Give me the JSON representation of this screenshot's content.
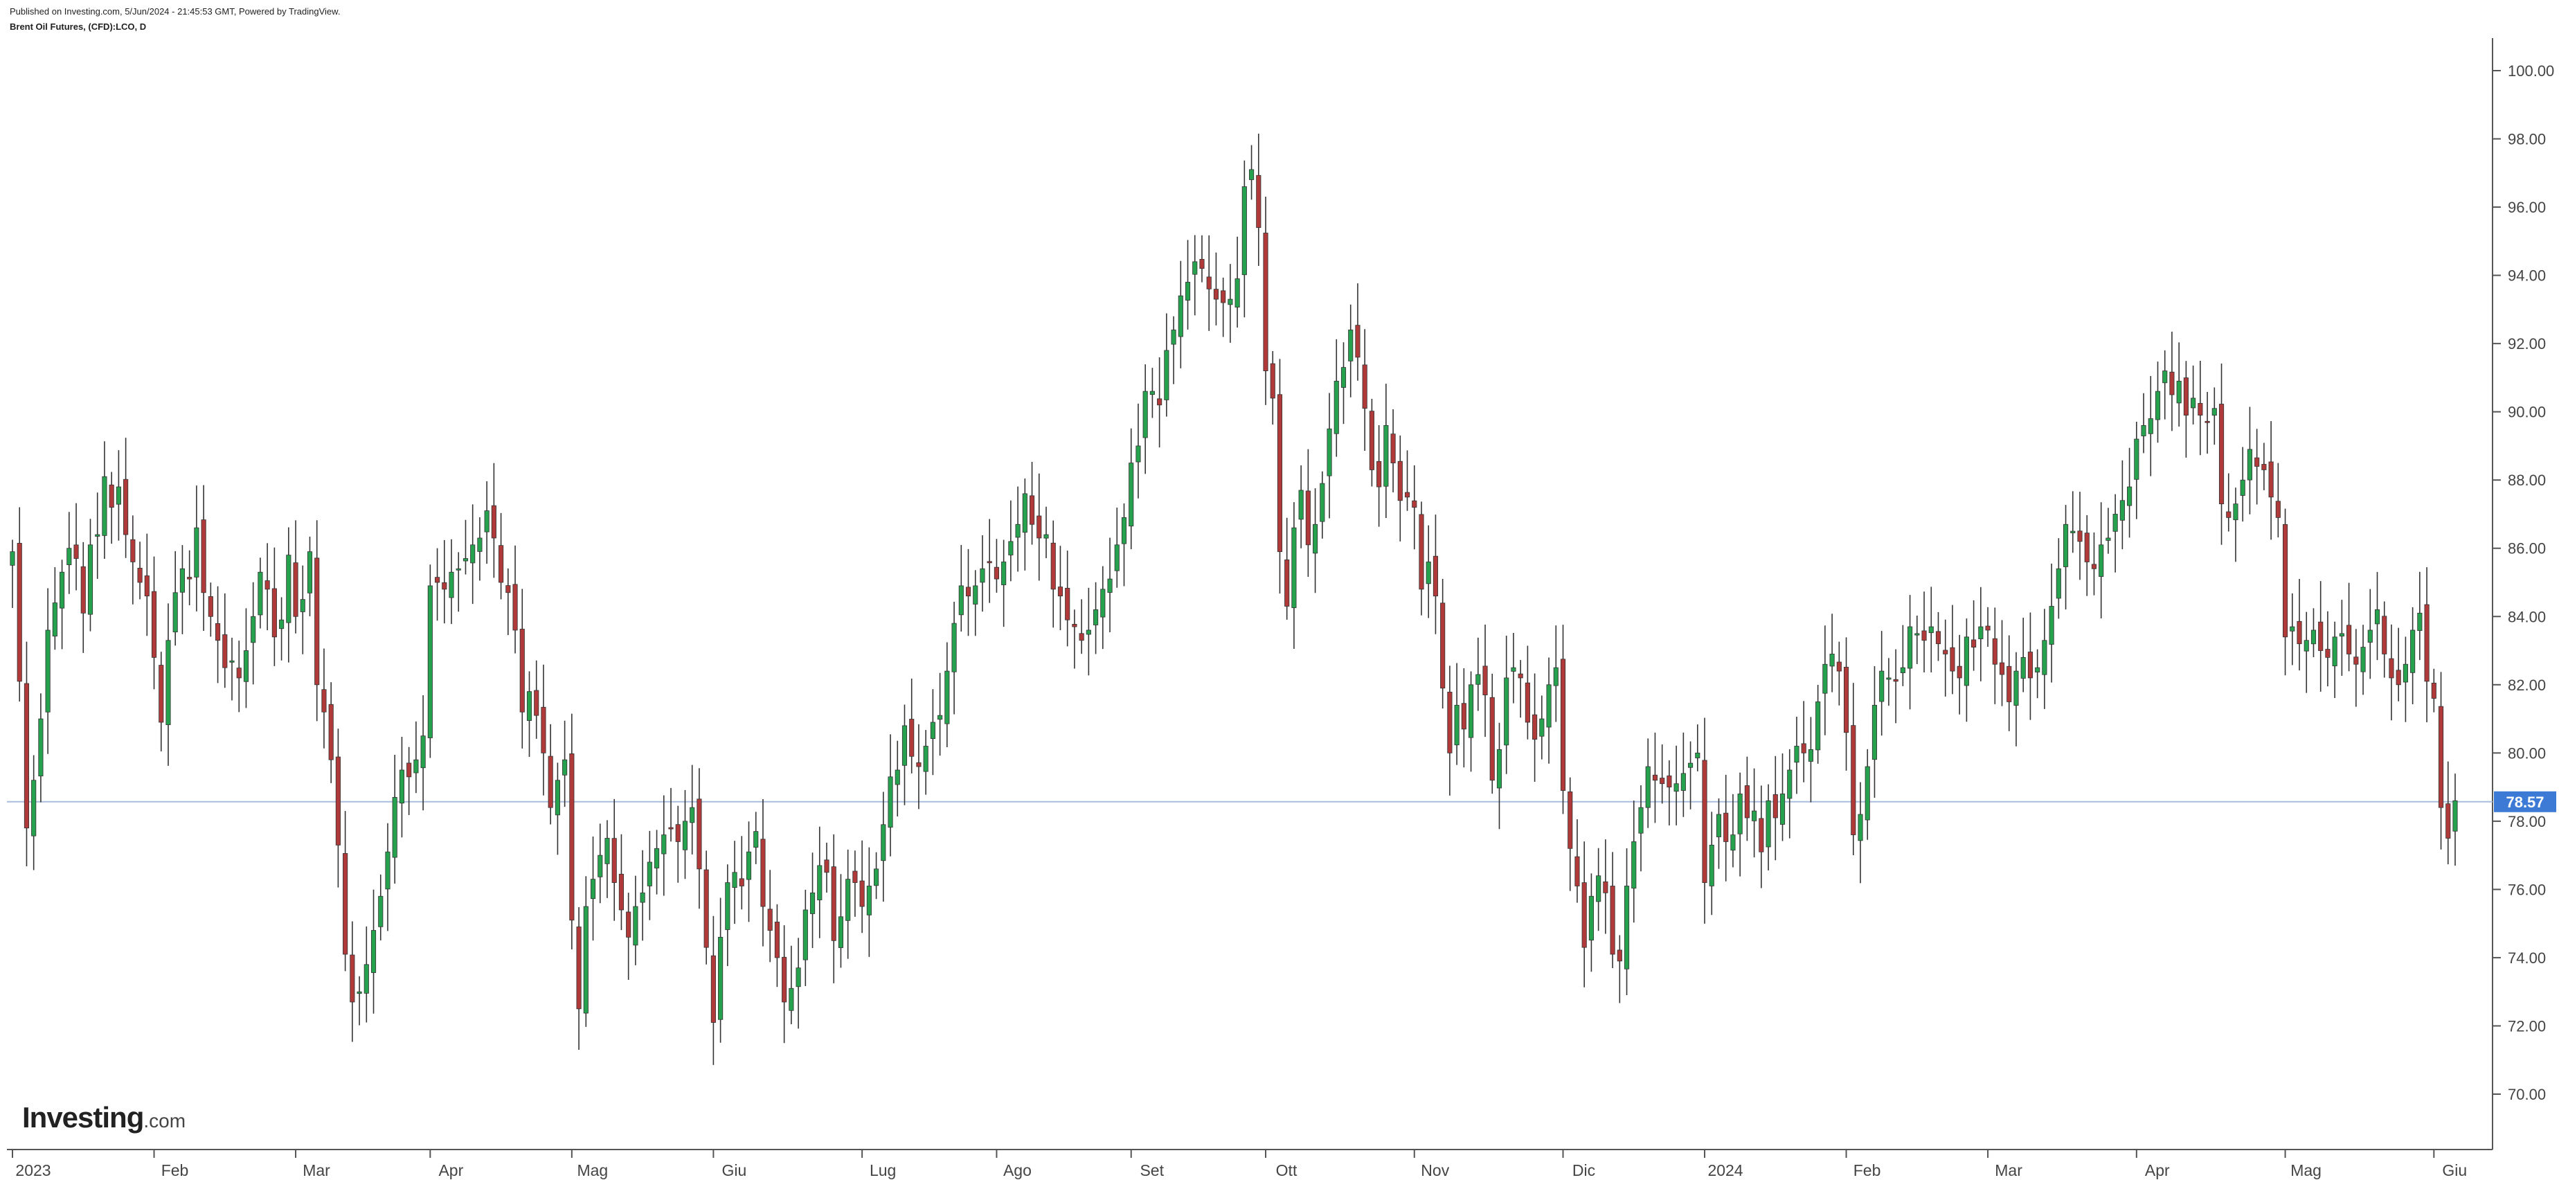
{
  "header": {
    "published": "Published on Investing.com, 5/Jun/2024 - 21:45:53 GMT, Powered by TradingView.",
    "title": "Brent Oil Futures, (CFD):LCO, D"
  },
  "logo": {
    "brand": "Investing",
    "tld": ".com"
  },
  "colors": {
    "up": "#26a24f",
    "down": "#b03a3a",
    "wick": "#333333",
    "price_line": "#a9bedc",
    "price_tag": "#3d7ad6",
    "axis": "#555555"
  },
  "chart_data": {
    "type": "candlestick",
    "title": "Brent Oil Futures, (CFD):LCO, D",
    "xlabel": "",
    "ylabel": "",
    "ylim": [
      69,
      101
    ],
    "y_ticks": [
      "70.00",
      "72.00",
      "74.00",
      "76.00",
      "78.00",
      "80.00",
      "82.00",
      "84.00",
      "86.00",
      "88.00",
      "90.00",
      "92.00",
      "94.00",
      "96.00",
      "98.00",
      "100.00"
    ],
    "x_ticks": [
      "2023",
      "Feb",
      "Mar",
      "Apr",
      "Mag",
      "Giu",
      "Lug",
      "Ago",
      "Set",
      "Ott",
      "Nov",
      "Dic",
      "2024",
      "Feb",
      "Mar",
      "Apr",
      "Mag",
      "Giu"
    ],
    "current_price": 78.57,
    "current_price_label": "78.57",
    "series": [
      {
        "month": "2023",
        "close": [
          85.9,
          82.1,
          77.8,
          79.2,
          81.0,
          83.6,
          84.4,
          85.3,
          86.0,
          85.7,
          84.1,
          86.1,
          86.4,
          88.1,
          87.2,
          87.8,
          86.4,
          85.6,
          85.0,
          84.6
        ]
      },
      {
        "month": "Feb",
        "close": [
          82.8,
          80.9,
          83.3,
          84.7,
          85.4,
          85.1,
          86.6,
          84.7,
          84.0,
          83.3,
          82.5,
          82.7,
          82.2,
          83.0,
          84.0,
          85.3,
          84.8,
          83.4,
          83.9,
          85.8
        ]
      },
      {
        "month": "Mar",
        "close": [
          84.0,
          84.5,
          85.9,
          82.0,
          81.2,
          79.8,
          77.3,
          74.1,
          72.7,
          73.0,
          73.8,
          74.8,
          75.8,
          77.1,
          78.7,
          79.5,
          79.3,
          79.8,
          80.5
        ]
      },
      {
        "month": "Apr",
        "close": [
          84.9,
          85.0,
          84.8,
          85.3,
          85.4,
          85.7,
          86.1,
          86.3,
          87.1,
          86.3,
          85.0,
          84.7,
          83.6,
          81.2,
          81.8,
          81.1,
          80.0,
          78.4,
          79.2,
          79.8
        ]
      },
      {
        "month": "Mag",
        "close": [
          75.1,
          72.5,
          75.5,
          76.3,
          77.0,
          77.5,
          76.2,
          75.4,
          74.6,
          75.5,
          75.9,
          76.8,
          77.2,
          77.6,
          77.8,
          77.4,
          78.0,
          78.4,
          76.6,
          74.3
        ]
      },
      {
        "month": "Giu",
        "close": [
          72.1,
          74.6,
          76.2,
          76.5,
          76.1,
          77.1,
          77.7,
          75.5,
          74.8,
          74.0,
          72.7,
          73.1,
          73.7,
          75.4,
          75.9,
          76.7,
          76.5,
          74.5,
          75.2,
          76.3,
          76.2
        ]
      },
      {
        "month": "Lug",
        "close": [
          75.5,
          76.1,
          76.6,
          77.9,
          79.3,
          79.5,
          80.8,
          79.9,
          79.6,
          80.2,
          80.9,
          81.1,
          82.4,
          83.8,
          84.9,
          84.6,
          84.9,
          85.4,
          85.6
        ]
      },
      {
        "month": "Ago",
        "close": [
          85.1,
          85.6,
          86.2,
          86.7,
          87.6,
          86.7,
          86.3,
          86.4,
          84.8,
          84.6,
          83.9,
          83.7,
          83.3,
          83.6,
          84.2,
          84.8,
          85.1,
          86.1,
          86.9
        ]
      },
      {
        "month": "Set",
        "close": [
          88.5,
          89.0,
          90.6,
          90.6,
          90.2,
          91.8,
          92.4,
          93.4,
          93.8,
          94.4,
          94.2,
          93.6,
          93.3,
          93.2,
          93.3,
          93.9,
          96.6,
          97.1,
          95.4
        ]
      },
      {
        "month": "Ott",
        "close": [
          91.2,
          90.4,
          85.9,
          84.3,
          86.6,
          87.7,
          86.1,
          86.7,
          87.9,
          89.5,
          90.9,
          91.3,
          92.4,
          91.6,
          90.1,
          88.3,
          87.8,
          89.6,
          88.5,
          87.4,
          87.5
        ]
      },
      {
        "month": "Nov",
        "close": [
          87.2,
          84.8,
          85.6,
          84.6,
          81.9,
          80.0,
          81.4,
          80.7,
          82.0,
          82.3,
          81.7,
          79.2,
          80.1,
          82.2,
          82.5,
          82.2,
          80.9,
          80.4,
          81.0,
          82.0,
          82.5
        ]
      },
      {
        "month": "Dic",
        "close": [
          78.9,
          77.2,
          76.1,
          74.3,
          75.8,
          76.4,
          75.9,
          74.1,
          73.9,
          76.1,
          77.4,
          78.4,
          79.6,
          79.2,
          79.1,
          79.0,
          79.1,
          79.4,
          79.7,
          80.0
        ]
      },
      {
        "month": "2024",
        "close": [
          76.2,
          77.3,
          78.2,
          77.4,
          77.6,
          78.8,
          78.1,
          78.3,
          77.1,
          78.6,
          78.1,
          78.8,
          79.5,
          80.2,
          80.0,
          80.1,
          81.5,
          82.6,
          82.9,
          82.4
        ]
      },
      {
        "month": "Feb",
        "close": [
          80.6,
          77.6,
          78.2,
          79.6,
          81.4,
          82.4,
          82.2,
          82.1,
          82.5,
          83.7,
          83.5,
          83.3,
          83.7,
          83.2,
          82.9,
          82.4,
          82.2,
          83.4,
          83.1,
          83.7
        ]
      },
      {
        "month": "Mar",
        "close": [
          83.6,
          82.6,
          82.3,
          81.5,
          82.4,
          82.8,
          82.2,
          82.5,
          83.3,
          84.3,
          85.4,
          86.7,
          86.5,
          86.2,
          85.6,
          85.4,
          86.1,
          86.3,
          87.0,
          87.4,
          87.8
        ]
      },
      {
        "month": "Apr",
        "close": [
          89.2,
          89.6,
          89.8,
          90.6,
          91.2,
          90.5,
          90.9,
          89.9,
          90.4,
          89.9,
          89.7,
          90.1,
          87.3,
          86.9,
          87.3,
          88.0,
          88.9,
          88.4,
          88.3,
          87.5,
          86.9
        ]
      },
      {
        "month": "Mag",
        "close": [
          83.4,
          83.7,
          83.2,
          83.3,
          83.6,
          83.0,
          82.8,
          83.4,
          83.5,
          82.9,
          82.6,
          83.1,
          83.6,
          84.2,
          82.9,
          82.2,
          82.0,
          82.6,
          83.6,
          84.1,
          82.1
        ]
      },
      {
        "month": "Giu",
        "close": [
          81.6,
          78.4,
          77.5,
          78.6
        ]
      }
    ]
  }
}
